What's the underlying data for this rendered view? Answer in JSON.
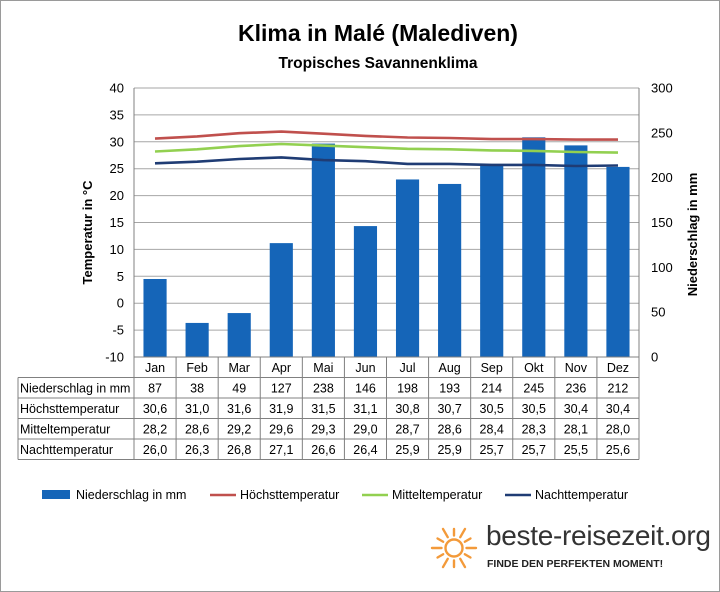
{
  "chart_data": {
    "type": "bar+line",
    "title": "Klima in Malé (Malediven)",
    "subtitle": "Tropisches  Savannenklima",
    "categories": [
      "Jan",
      "Feb",
      "Mar",
      "Apr",
      "Mai",
      "Jun",
      "Jul",
      "Aug",
      "Sep",
      "Okt",
      "Nov",
      "Dez"
    ],
    "left_axis": {
      "label": "Temperatur in °C",
      "range": [
        -10,
        40
      ],
      "ticks": [
        -10,
        -5,
        0,
        5,
        10,
        15,
        20,
        25,
        30,
        35,
        40
      ]
    },
    "right_axis": {
      "label": "Niederschlag in mm",
      "range": [
        0,
        300
      ],
      "ticks": [
        0,
        50,
        100,
        150,
        200,
        250,
        300
      ]
    },
    "grid": "horizontal",
    "legend_position": "bottom",
    "series": [
      {
        "name": "Niederschlag in mm",
        "type": "bar",
        "axis": "right",
        "color": "#1565b8",
        "values": [
          87,
          38,
          49,
          127,
          238,
          146,
          198,
          193,
          214,
          245,
          236,
          212
        ],
        "labels": [
          "87",
          "38",
          "49",
          "127",
          "238",
          "146",
          "198",
          "193",
          "214",
          "245",
          "236",
          "212"
        ]
      },
      {
        "name": "Höchsttemperatur",
        "type": "line",
        "axis": "left",
        "color": "#c0504d",
        "values": [
          30.6,
          31.0,
          31.6,
          31.9,
          31.5,
          31.1,
          30.8,
          30.7,
          30.5,
          30.5,
          30.4,
          30.4
        ],
        "labels": [
          "30,6",
          "31,0",
          "31,6",
          "31,9",
          "31,5",
          "31,1",
          "30,8",
          "30,7",
          "30,5",
          "30,5",
          "30,4",
          "30,4"
        ]
      },
      {
        "name": "Mitteltemperatur",
        "type": "line",
        "axis": "left",
        "color": "#92d050",
        "values": [
          28.2,
          28.6,
          29.2,
          29.6,
          29.3,
          29.0,
          28.7,
          28.6,
          28.4,
          28.3,
          28.1,
          28.0
        ],
        "labels": [
          "28,2",
          "28,6",
          "29,2",
          "29,6",
          "29,3",
          "29,0",
          "28,7",
          "28,6",
          "28,4",
          "28,3",
          "28,1",
          "28,0"
        ]
      },
      {
        "name": "Nachttemperatur",
        "type": "line",
        "axis": "left",
        "color": "#1f3c74",
        "values": [
          26.0,
          26.3,
          26.8,
          27.1,
          26.6,
          26.4,
          25.9,
          25.9,
          25.7,
          25.7,
          25.5,
          25.6
        ],
        "labels": [
          "26,0",
          "26,3",
          "26,8",
          "27,1",
          "26,6",
          "26,4",
          "25,9",
          "25,9",
          "25,7",
          "25,7",
          "25,5",
          "25,6"
        ]
      }
    ]
  },
  "table_row_labels": [
    "Niederschlag in mm",
    "Höchsttemperatur",
    "Mitteltemperatur",
    "Nachttemperatur"
  ],
  "brand": {
    "name": "beste-reisezeit.org",
    "slogan": "FINDE DEN PERFEKTEN MOMENT!",
    "logo_icon": "sun-icon",
    "logo_color": "#f39a3a"
  }
}
